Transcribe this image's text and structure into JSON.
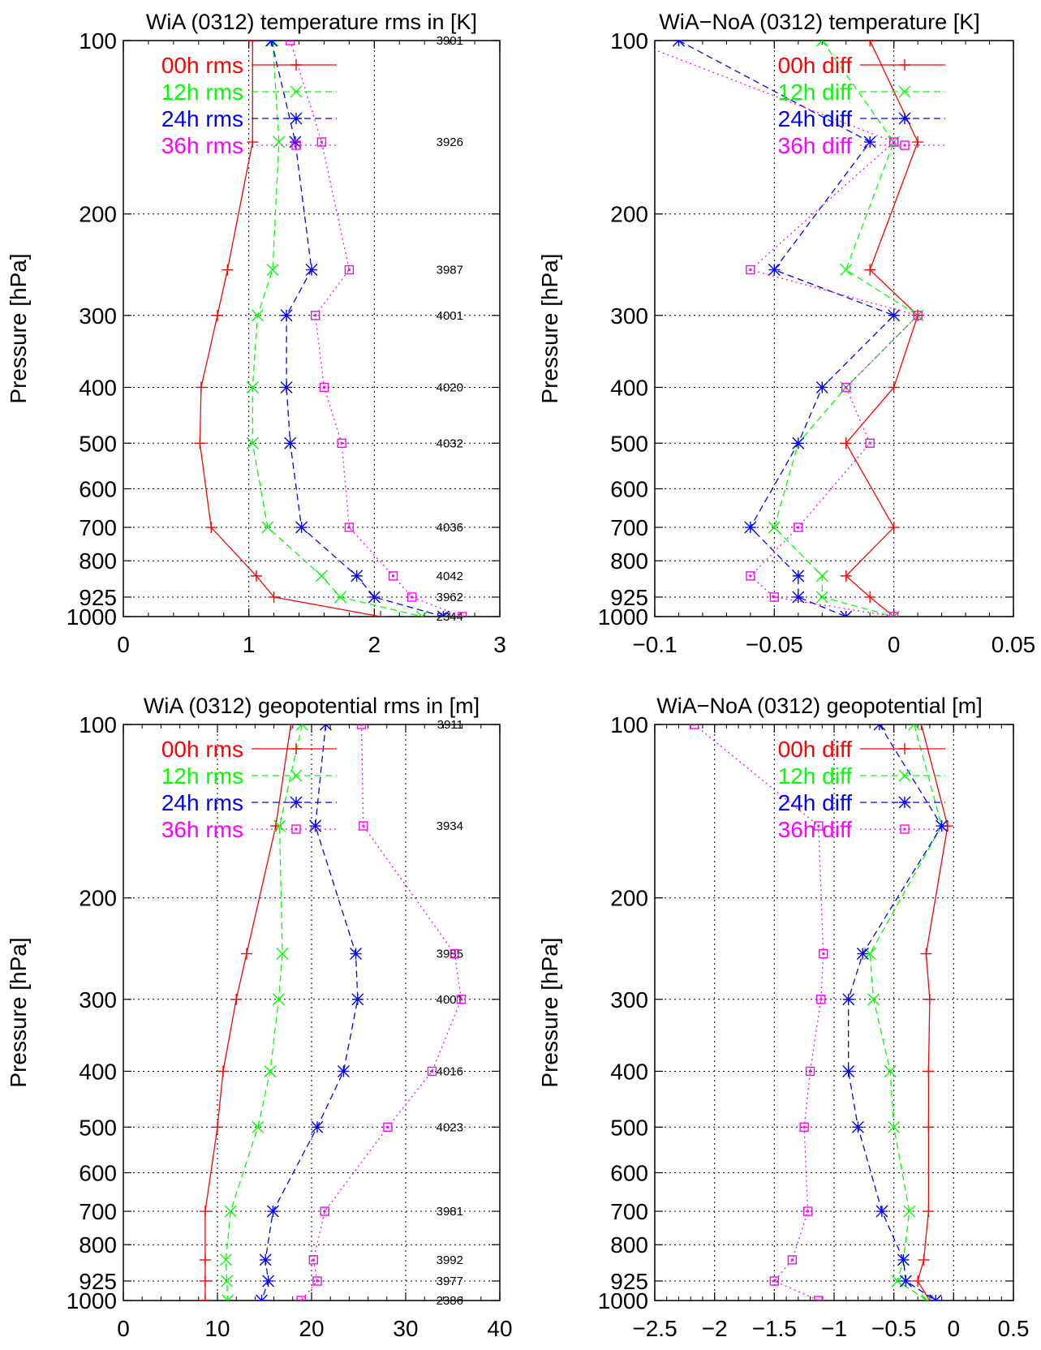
{
  "figure": "4-panel pressure profile comparison",
  "chart_data": [
    {
      "type": "line",
      "title": "WiA (0312) temperature rms in [K]",
      "ylabel": "Pressure [hPa]",
      "xlabel": "",
      "y_scale": "log-reversed",
      "ylim": [
        100,
        1000
      ],
      "xlim": [
        0,
        3
      ],
      "x_ticks": [
        "0",
        "1",
        "2",
        "3"
      ],
      "y_ticks": [
        "100",
        "200",
        "300",
        "400",
        "500",
        "600",
        "700",
        "800",
        "925",
        "1000"
      ],
      "grid": true,
      "legend_position": "top-left",
      "levels": [
        100,
        150,
        250,
        300,
        400,
        500,
        700,
        850,
        925,
        1000
      ],
      "series": [
        {
          "name": "00h rms",
          "color": "#ff0000",
          "marker": "plus",
          "dash": "solid",
          "values": [
            1.03,
            1.03,
            0.83,
            0.75,
            0.62,
            0.61,
            0.7,
            1.06,
            1.2,
            2.05
          ]
        },
        {
          "name": "12h rms",
          "color": "#00ff00",
          "marker": "x",
          "dash": "dashed",
          "values": [
            1.19,
            1.24,
            1.19,
            1.07,
            1.03,
            1.03,
            1.15,
            1.58,
            1.73,
            2.38
          ]
        },
        {
          "name": "24h rms",
          "color": "#0000ff",
          "marker": "star",
          "dash": "dashed",
          "values": [
            1.18,
            1.37,
            1.5,
            1.3,
            1.3,
            1.33,
            1.42,
            1.86,
            2.0,
            2.55
          ]
        },
        {
          "name": "36h rms",
          "color": "#ff00ff",
          "marker": "box",
          "dash": "dotted",
          "values": [
            1.33,
            1.58,
            1.8,
            1.53,
            1.6,
            1.74,
            1.8,
            2.15,
            2.3,
            2.7
          ]
        }
      ],
      "counts": [
        {
          "level": 100,
          "text": "3901"
        },
        {
          "level": 150,
          "text": "3926"
        },
        {
          "level": 250,
          "text": "3987"
        },
        {
          "level": 300,
          "text": "4001"
        },
        {
          "level": 400,
          "text": "4020"
        },
        {
          "level": 500,
          "text": "4032"
        },
        {
          "level": 700,
          "text": "4036"
        },
        {
          "level": 850,
          "text": "4042"
        },
        {
          "level": 925,
          "text": "3962"
        },
        {
          "level": 1000,
          "text": "2344"
        }
      ]
    },
    {
      "type": "line",
      "title": "WiA−NoA (0312) temperature [K]",
      "ylabel": "Pressure [hPa]",
      "xlabel": "",
      "y_scale": "log-reversed",
      "ylim": [
        100,
        1000
      ],
      "xlim": [
        -0.1,
        0.05
      ],
      "x_ticks": [
        "−0.1",
        "−0.05",
        "0",
        "0.05"
      ],
      "y_ticks": [
        "100",
        "200",
        "300",
        "400",
        "500",
        "600",
        "700",
        "800",
        "925",
        "1000"
      ],
      "grid": true,
      "legend_position": "top-left",
      "levels": [
        100,
        150,
        250,
        300,
        400,
        500,
        700,
        850,
        925,
        1000
      ],
      "series": [
        {
          "name": "00h diff",
          "color": "#ff0000",
          "marker": "plus",
          "dash": "solid",
          "values": [
            -0.01,
            0.01,
            -0.01,
            0.01,
            0.0,
            -0.02,
            0.0,
            -0.02,
            -0.01,
            0.0
          ]
        },
        {
          "name": "12h diff",
          "color": "#00ff00",
          "marker": "x",
          "dash": "dashed",
          "values": [
            -0.03,
            0.0,
            -0.02,
            0.01,
            -0.02,
            -0.04,
            -0.05,
            -0.03,
            -0.03,
            0.0
          ]
        },
        {
          "name": "24h diff",
          "color": "#0000ff",
          "marker": "star",
          "dash": "dashed",
          "values": [
            -0.09,
            -0.01,
            -0.05,
            0.0,
            -0.03,
            -0.04,
            -0.06,
            -0.04,
            -0.04,
            -0.02
          ]
        },
        {
          "name": "36h diff",
          "color": "#ff00ff",
          "marker": "box",
          "dash": "dotted",
          "values": [
            -0.11,
            0.0,
            -0.06,
            0.01,
            -0.02,
            -0.01,
            -0.04,
            -0.06,
            -0.05,
            0.0
          ]
        }
      ]
    },
    {
      "type": "line",
      "title": "WiA (0312) geopotential rms in [m]",
      "ylabel": "Pressure [hPa]",
      "xlabel": "",
      "y_scale": "log-reversed",
      "ylim": [
        100,
        1000
      ],
      "xlim": [
        0,
        40
      ],
      "x_ticks": [
        "0",
        "10",
        "20",
        "30",
        "40"
      ],
      "y_ticks": [
        "100",
        "200",
        "300",
        "400",
        "500",
        "600",
        "700",
        "800",
        "925",
        "1000"
      ],
      "grid": true,
      "legend_position": "top-left",
      "levels": [
        100,
        150,
        250,
        300,
        400,
        500,
        700,
        850,
        925,
        1000
      ],
      "series": [
        {
          "name": "00h rms",
          "color": "#ff0000",
          "marker": "plus",
          "dash": "solid",
          "values": [
            17.8,
            16.2,
            13.1,
            12.0,
            10.6,
            10.0,
            8.7,
            8.7,
            8.7,
            8.7
          ]
        },
        {
          "name": "12h rms",
          "color": "#00ff00",
          "marker": "x",
          "dash": "dashed",
          "values": [
            19.0,
            16.6,
            16.9,
            16.5,
            15.6,
            14.3,
            11.4,
            10.9,
            11.0,
            11.1
          ]
        },
        {
          "name": "24h rms",
          "color": "#0000ff",
          "marker": "star",
          "dash": "dashed",
          "values": [
            21.5,
            20.4,
            24.7,
            24.9,
            23.4,
            20.6,
            15.9,
            15.1,
            15.4,
            14.7
          ]
        },
        {
          "name": "36h rms",
          "color": "#ff00ff",
          "marker": "box",
          "dash": "dotted",
          "values": [
            25.3,
            25.5,
            35.2,
            35.9,
            32.8,
            28.1,
            21.4,
            20.2,
            20.6,
            18.9
          ]
        }
      ],
      "counts": [
        {
          "level": 100,
          "text": "3911"
        },
        {
          "level": 150,
          "text": "3934"
        },
        {
          "level": 250,
          "text": "3985"
        },
        {
          "level": 300,
          "text": "4001"
        },
        {
          "level": 400,
          "text": "4016"
        },
        {
          "level": 500,
          "text": "4023"
        },
        {
          "level": 700,
          "text": "3981"
        },
        {
          "level": 850,
          "text": "3992"
        },
        {
          "level": 925,
          "text": "3977"
        },
        {
          "level": 1000,
          "text": "2386"
        }
      ]
    },
    {
      "type": "line",
      "title": "WiA−NoA (0312) geopotential [m]",
      "ylabel": "Pressure [hPa]",
      "xlabel": "",
      "y_scale": "log-reversed",
      "ylim": [
        100,
        1000
      ],
      "xlim": [
        -2.5,
        0.5
      ],
      "x_ticks": [
        "−2.5",
        "−2",
        "−1.5",
        "−1",
        "−0.5",
        "0",
        "0.5"
      ],
      "y_ticks": [
        "100",
        "200",
        "300",
        "400",
        "500",
        "600",
        "700",
        "800",
        "925",
        "1000"
      ],
      "grid": true,
      "legend_position": "top-left",
      "levels": [
        100,
        150,
        250,
        300,
        400,
        500,
        700,
        850,
        925,
        1000
      ],
      "series": [
        {
          "name": "00h diff",
          "color": "#ff0000",
          "marker": "plus",
          "dash": "solid",
          "values": [
            -0.27,
            -0.05,
            -0.23,
            -0.2,
            -0.21,
            -0.21,
            -0.21,
            -0.25,
            -0.3,
            -0.2
          ]
        },
        {
          "name": "12h diff",
          "color": "#00ff00",
          "marker": "x",
          "dash": "dashed",
          "values": [
            -0.33,
            -0.1,
            -0.7,
            -0.67,
            -0.53,
            -0.5,
            -0.37,
            -0.42,
            -0.47,
            -0.22
          ]
        },
        {
          "name": "24h diff",
          "color": "#0000ff",
          "marker": "star",
          "dash": "dashed",
          "values": [
            -0.62,
            -0.1,
            -0.76,
            -0.88,
            -0.88,
            -0.8,
            -0.6,
            -0.42,
            -0.4,
            -0.15
          ]
        },
        {
          "name": "36h diff",
          "color": "#ff00ff",
          "marker": "box",
          "dash": "dotted",
          "values": [
            -2.17,
            -1.13,
            -1.09,
            -1.11,
            -1.2,
            -1.25,
            -1.22,
            -1.35,
            -1.5,
            -1.13
          ]
        }
      ]
    }
  ]
}
